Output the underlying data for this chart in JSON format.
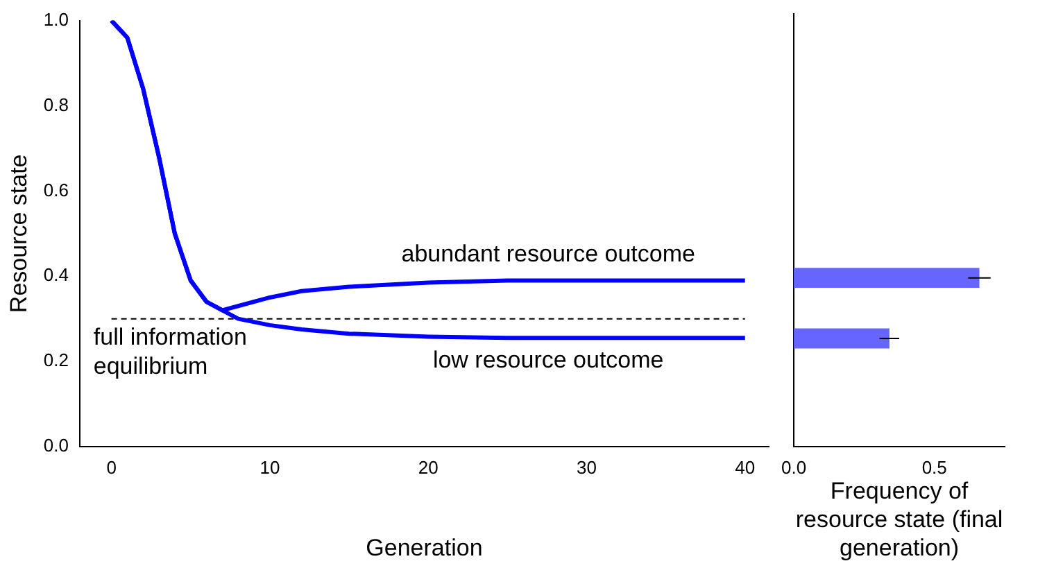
{
  "chart_data": [
    {
      "type": "line",
      "ylabel": "Resource state",
      "xlabel": "Generation",
      "series": [
        {
          "color": "#0000ff",
          "x": [
            0,
            1,
            2,
            3,
            4,
            5,
            6,
            7,
            8,
            10,
            12,
            15,
            20,
            25,
            30,
            40
          ],
          "values": [
            1.0,
            0.96,
            0.84,
            0.68,
            0.5,
            0.39,
            0.34,
            0.32,
            0.33,
            0.35,
            0.365,
            0.375,
            0.385,
            0.39,
            0.39,
            0.39
          ]
        },
        {
          "color": "#0000ff",
          "x": [
            0,
            1,
            2,
            3,
            4,
            5,
            6,
            7,
            8,
            10,
            12,
            15,
            20,
            25,
            30,
            40
          ],
          "values": [
            1.0,
            0.96,
            0.84,
            0.68,
            0.5,
            0.39,
            0.34,
            0.32,
            0.3,
            0.285,
            0.275,
            0.265,
            0.258,
            0.255,
            0.255,
            0.255
          ]
        },
        {
          "type": "line",
          "color": "#000000",
          "line_style": "dashed",
          "x": [
            0,
            40
          ],
          "values": [
            0.3,
            0.3
          ]
        }
      ],
      "xlim": [
        -2,
        41.5
      ],
      "xticks": [
        0,
        10,
        20,
        30,
        40
      ],
      "ylim": [
        0,
        1
      ],
      "yticks": [
        {
          "value": 0,
          "label": "0.0"
        },
        0.2,
        0.4,
        0.6,
        0.8,
        {
          "value": 1,
          "label": "1.0"
        }
      ],
      "annotations": [
        "abundant resource outcome",
        "low resource outcome",
        "full information equilibrium"
      ]
    },
    {
      "type": "bar",
      "orientation": "horizontal",
      "xlabel": "Frequency of resource state (final generation)",
      "x": [
        0.39,
        0.25
      ],
      "values": [
        0.66,
        0.34
      ],
      "errors": [
        0.04,
        0.035
      ],
      "color": "#6666ff",
      "xlim": [
        0,
        0.75
      ],
      "xticks": [
        {
          "value": 0,
          "label": "0.0"
        },
        0.5
      ],
      "ylim": [
        0,
        1
      ],
      "tick_labels": "x"
    }
  ]
}
